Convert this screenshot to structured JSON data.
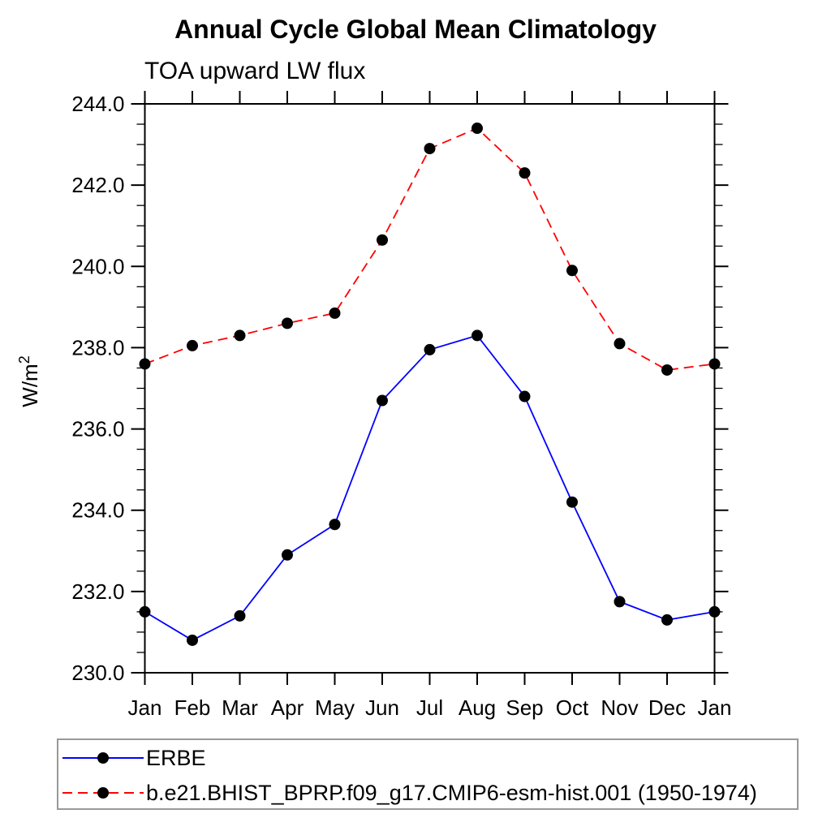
{
  "chart_data": {
    "type": "line",
    "title": "Annual Cycle Global Mean Climatology",
    "subtitle": "TOA upward LW flux",
    "xlabel": "",
    "ylabel": "W/m²",
    "categories": [
      "Jan",
      "Feb",
      "Mar",
      "Apr",
      "May",
      "Jun",
      "Jul",
      "Aug",
      "Sep",
      "Oct",
      "Nov",
      "Dec",
      "Jan"
    ],
    "ylim": [
      230.0,
      244.0
    ],
    "ytick_major_step": 2.0,
    "ytick_minor_step": 0.5,
    "ytick_labels": [
      "230.0",
      "232.0",
      "234.0",
      "236.0",
      "238.0",
      "240.0",
      "242.0",
      "244.0"
    ],
    "grid": false,
    "legend_position": "bottom-left-box",
    "marker_color": "#000000",
    "series": [
      {
        "name": "ERBE",
        "color": "#0000ff",
        "line_style": "solid",
        "marker": "filled-circle",
        "values": [
          231.5,
          230.8,
          231.4,
          232.9,
          233.65,
          236.7,
          237.95,
          238.3,
          236.8,
          234.2,
          231.75,
          231.3,
          231.5
        ]
      },
      {
        "name": "b.e21.BHIST_BPRP.f09_g17.CMIP6-esm-hist.001 (1950-1974)",
        "color": "#ff0000",
        "line_style": "dashed",
        "marker": "filled-circle",
        "values": [
          237.6,
          238.05,
          238.3,
          238.6,
          238.85,
          240.65,
          242.9,
          243.4,
          242.3,
          239.9,
          238.1,
          237.45,
          237.6
        ]
      }
    ]
  }
}
